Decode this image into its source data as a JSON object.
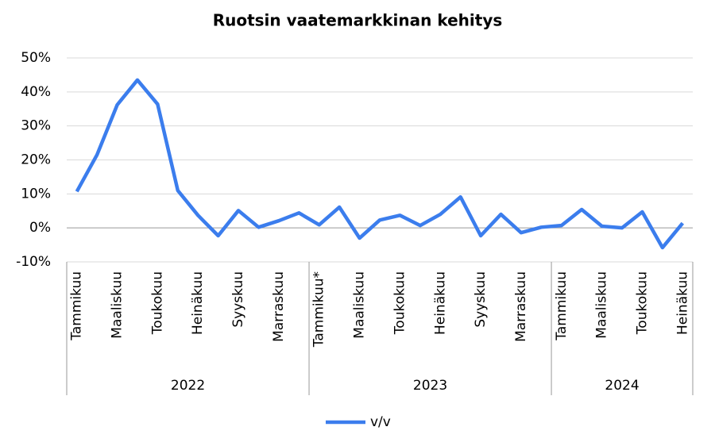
{
  "chart_data": {
    "type": "line",
    "title": "Ruotsin vaatemarkkinan kehitys",
    "categories": [
      "Tammikuu",
      null,
      "Maaliskuu",
      null,
      "Toukokuu",
      null,
      "Heinäkuu",
      null,
      "Syyskuu",
      null,
      "Marraskuu",
      null,
      "Tammikuu*",
      null,
      "Maaliskuu",
      null,
      "Toukokuu",
      null,
      "Heinäkuu",
      null,
      "Syyskuu",
      null,
      "Marraskuu",
      null,
      "Tammikuu",
      null,
      "Maaliskuu",
      null,
      "Toukokuu",
      null,
      "Heinäkuu"
    ],
    "x_groups": [
      {
        "label": "2022",
        "size": 12
      },
      {
        "label": "2023",
        "size": 12
      },
      {
        "label": "2024",
        "size": 7
      }
    ],
    "series": [
      {
        "name": "v/v",
        "color": "#3b7ded",
        "values": [
          10.7,
          21.5,
          36.2,
          43.5,
          36.4,
          11,
          3.7,
          -2.3,
          5.1,
          0.2,
          2.1,
          4.4,
          0.9,
          6.1,
          -3,
          2.3,
          3.7,
          0.7,
          4,
          9.1,
          -2.3,
          4,
          -1.4,
          0.2,
          0.7,
          5.4,
          0.5,
          0,
          4.7,
          -5.8,
          1.4
        ]
      }
    ],
    "ylim": [
      -10,
      50
    ],
    "yticks": [
      {
        "value": -10,
        "label": "-10%"
      },
      {
        "value": 0,
        "label": "0%"
      },
      {
        "value": 10,
        "label": "10%"
      },
      {
        "value": 20,
        "label": "20%"
      },
      {
        "value": 30,
        "label": "30%"
      },
      {
        "value": 40,
        "label": "40%"
      },
      {
        "value": 50,
        "label": "50%"
      }
    ],
    "grid": true,
    "legend": "bottom"
  }
}
